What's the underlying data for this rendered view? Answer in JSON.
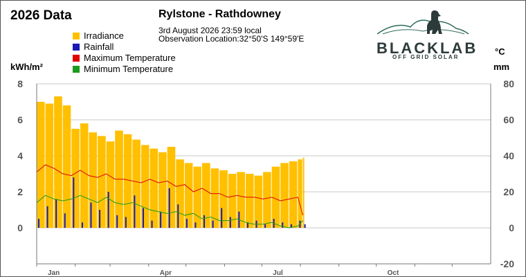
{
  "header": {
    "year_title": "2026 Data",
    "title": "Rylstone - Rathdowney",
    "date_line": "3rd August 2026  23:59 local",
    "location_line": "Observation Location:32°50'S 149°59'E"
  },
  "logo": {
    "name": "BLACKLAB",
    "tagline": "OFF GRID SOLAR"
  },
  "units": {
    "left": "kWh/m²",
    "right_top": "°C",
    "right_bottom": "mm"
  },
  "colors": {
    "irradiance": "#FFC000",
    "rainfall": "#1A1AB4",
    "max_temp": "#E00000",
    "min_temp": "#1C9A1C"
  },
  "chart_data": {
    "type": "bar",
    "series": [
      {
        "name": "Irradiance",
        "axis": "left",
        "style": "bar"
      },
      {
        "name": "Rainfall",
        "axis": "right",
        "style": "bar"
      },
      {
        "name": "Maximum Temperature",
        "axis": "right",
        "style": "line"
      },
      {
        "name": "Minimum Temperature",
        "axis": "right",
        "style": "line"
      }
    ],
    "left_axis": {
      "ylim": [
        0,
        8
      ],
      "ticks": [
        "0",
        "2",
        "4",
        "6",
        "8"
      ]
    },
    "right_axis": {
      "ylim": [
        -20,
        80
      ],
      "ticks": [
        "-20",
        "0",
        "20",
        "40",
        "60",
        "80"
      ]
    },
    "x_axis": {
      "months": [
        "Jan",
        "Apr",
        "Jul",
        "Oct"
      ],
      "days_in_year": 365
    },
    "days": [
      1,
      8,
      15,
      22,
      29,
      36,
      43,
      50,
      57,
      64,
      71,
      78,
      85,
      92,
      99,
      106,
      113,
      120,
      127,
      134,
      141,
      148,
      155,
      162,
      169,
      176,
      183,
      190,
      197,
      204,
      211,
      215
    ],
    "irradiance": [
      7.0,
      6.9,
      7.3,
      6.8,
      5.5,
      5.8,
      5.3,
      5.1,
      4.8,
      5.4,
      5.2,
      4.9,
      4.6,
      4.4,
      4.2,
      4.5,
      3.8,
      3.6,
      3.4,
      3.6,
      3.3,
      3.2,
      3.0,
      3.1,
      3.0,
      2.9,
      3.1,
      3.4,
      3.6,
      3.7,
      3.8,
      3.9
    ],
    "rainfall": [
      5,
      12,
      16,
      8,
      28,
      3,
      14,
      10,
      20,
      7,
      6,
      18,
      11,
      4,
      9,
      22,
      13,
      5,
      3,
      7,
      4,
      11,
      6,
      9,
      3,
      4,
      2,
      5,
      3,
      2,
      4,
      2
    ],
    "max_temp": [
      31,
      35,
      33,
      30,
      29,
      32,
      29,
      28,
      30,
      27,
      27,
      26,
      25,
      27,
      25,
      26,
      23,
      24,
      20,
      22,
      19,
      19,
      17,
      18,
      17,
      17,
      16,
      17,
      15,
      16,
      17,
      7
    ],
    "min_temp": [
      14,
      18,
      16,
      15,
      16,
      18,
      16,
      14,
      17,
      14,
      13,
      14,
      12,
      10,
      9,
      8,
      9,
      7,
      8,
      5,
      6,
      4,
      4,
      5,
      3,
      2,
      2,
      3,
      1,
      0,
      1,
      4
    ]
  }
}
